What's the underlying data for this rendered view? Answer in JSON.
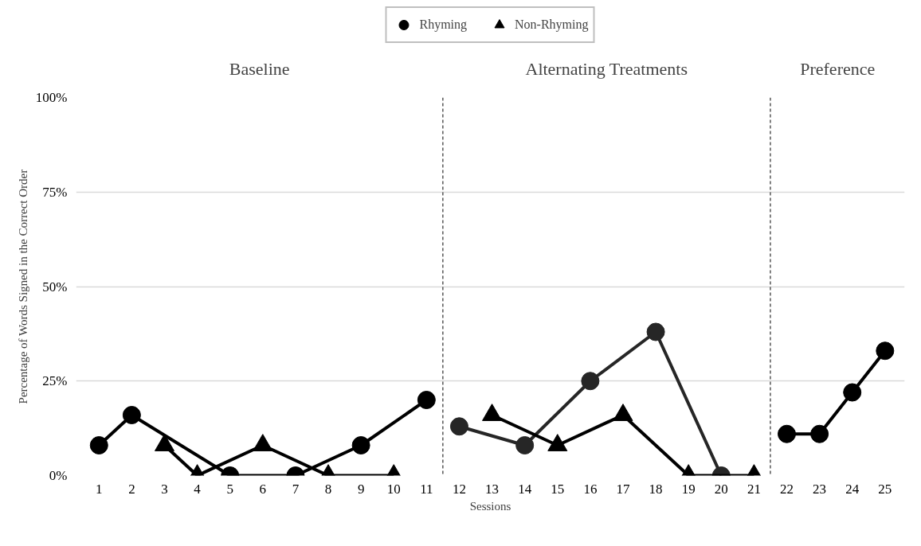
{
  "chart_data": {
    "type": "line",
    "xlabel": "Sessions",
    "ylabel": "Percentage of Words Signed in the Correct Order",
    "annotations": [
      "Baseline",
      "Alternating Treatments",
      "Preference"
    ],
    "series": [
      {
        "name": "Rhyming",
        "color": "#000000",
        "marker": "circle",
        "x": [
          1,
          2,
          5,
          7,
          9,
          11
        ],
        "values": [
          8,
          16,
          0,
          0,
          8,
          20
        ]
      },
      {
        "name": "Non-Rhyming",
        "color": "#000000",
        "marker": "triangle",
        "x": [
          3,
          4,
          6,
          8,
          10
        ],
        "values": [
          8,
          0,
          8,
          0,
          0
        ]
      },
      {
        "color": "#262626",
        "marker": "circle",
        "x": [
          12,
          14,
          16,
          18,
          20
        ],
        "values": [
          13,
          8,
          25,
          38,
          0
        ]
      },
      {
        "color": "#000000",
        "marker": "triangle",
        "x": [
          13,
          15,
          17,
          19,
          21
        ],
        "values": [
          16,
          8,
          16,
          0,
          0
        ]
      },
      {
        "color": "#000000",
        "marker": "circle",
        "x": [
          22,
          23,
          24,
          25
        ],
        "values": [
          11,
          11,
          22,
          33
        ]
      }
    ],
    "ref_lines": [
      {
        "axis": "x",
        "value": 11.5,
        "line_style": "dashed"
      },
      {
        "axis": "x",
        "value": 21.5,
        "line_style": "dashed"
      }
    ],
    "xlim": [
      0.3,
      25.6
    ],
    "xticks": [
      1,
      2,
      3,
      4,
      5,
      6,
      7,
      8,
      9,
      10,
      11,
      12,
      13,
      14,
      15,
      16,
      17,
      18,
      19,
      20,
      21,
      22,
      23,
      24,
      25
    ],
    "ylim": [
      0,
      100
    ],
    "yticks": [
      {
        "value": 0,
        "label": "0%"
      },
      {
        "value": 25,
        "label": "25%"
      },
      {
        "value": 50,
        "label": "50%"
      },
      {
        "value": 75,
        "label": "75%"
      },
      {
        "value": 100,
        "label": "100%"
      }
    ],
    "grid": "y",
    "legend": "top",
    "line_style": "solid"
  }
}
